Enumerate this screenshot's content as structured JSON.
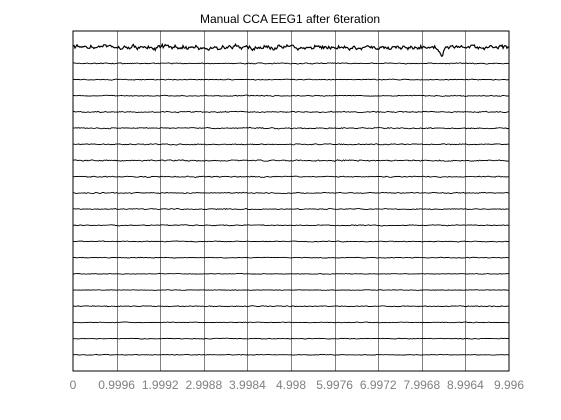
{
  "chart_data": {
    "type": "line",
    "title": "Manual CCA EEG1 after  6teration",
    "xlabel": "",
    "ylabel": "",
    "xlim": [
      0,
      9.996
    ],
    "x_ticks": [
      0,
      0.9996,
      1.9992,
      2.9988,
      3.9984,
      4.998,
      5.9976,
      6.9972,
      7.9968,
      8.9964,
      9.996
    ],
    "x_tick_labels": [
      "0",
      "0.9996",
      "1.9992",
      "2.9988",
      "3.9984",
      "4.998",
      "5.9976",
      "6.9972",
      "7.9968",
      "8.9964",
      "9.996"
    ],
    "grid": true,
    "legend": "none",
    "channel_count": 20,
    "series": [
      {
        "amplitude": 2.2,
        "seed": 11,
        "events": [
          {
            "x": 8.45,
            "depth": 9
          }
        ]
      },
      {
        "amplitude": 0.5,
        "seed": 12,
        "events": []
      },
      {
        "amplitude": 0.4,
        "seed": 13,
        "events": []
      },
      {
        "amplitude": 0.45,
        "seed": 14,
        "events": []
      },
      {
        "amplitude": 0.5,
        "seed": 15,
        "events": []
      },
      {
        "amplitude": 0.55,
        "seed": 16,
        "events": []
      },
      {
        "amplitude": 0.5,
        "seed": 17,
        "events": []
      },
      {
        "amplitude": 0.6,
        "seed": 18,
        "events": []
      },
      {
        "amplitude": 0.55,
        "seed": 19,
        "events": []
      },
      {
        "amplitude": 0.5,
        "seed": 20,
        "events": []
      },
      {
        "amplitude": 0.45,
        "seed": 21,
        "events": []
      },
      {
        "amplitude": 0.45,
        "seed": 22,
        "events": []
      },
      {
        "amplitude": 0.4,
        "seed": 23,
        "events": []
      },
      {
        "amplitude": 0.35,
        "seed": 24,
        "events": []
      },
      {
        "amplitude": 0.3,
        "seed": 25,
        "events": []
      },
      {
        "amplitude": 0.3,
        "seed": 26,
        "events": []
      },
      {
        "amplitude": 0.45,
        "seed": 27,
        "events": []
      },
      {
        "amplitude": 0.35,
        "seed": 28,
        "events": []
      },
      {
        "amplitude": 0.35,
        "seed": 29,
        "events": []
      },
      {
        "amplitude": 0.3,
        "seed": 30,
        "events": []
      }
    ],
    "colors": {
      "trace": "#000000",
      "grid": "#808080",
      "axes": "#000000",
      "tick_label": "#808080"
    }
  }
}
